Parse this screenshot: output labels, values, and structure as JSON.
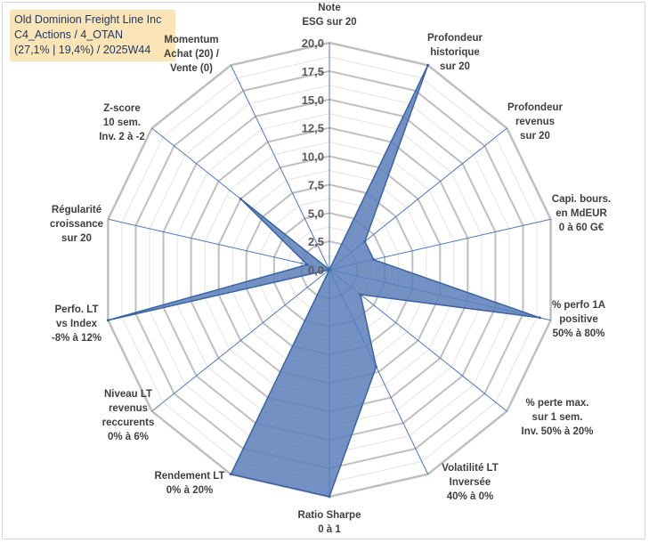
{
  "chart_data": {
    "type": "radar",
    "title": [
      "Old Dominion Freight Line Inc",
      "C4_Actions / 4_OTAN",
      "(27,1% | 19,4%) / 2025W44"
    ],
    "rlim": [
      0,
      20
    ],
    "ticks": [
      "0,0",
      "2,5",
      "5,0",
      "7,5",
      "10,0",
      "12,5",
      "15,0",
      "17,5",
      "20,0"
    ],
    "axes": [
      {
        "label": [
          "Note",
          "ESG sur 20"
        ],
        "value": 0
      },
      {
        "label": [
          "Profondeur",
          "historique",
          "sur 20"
        ],
        "value": 20
      },
      {
        "label": [
          "Profondeur",
          "revenus",
          "sur 20"
        ],
        "value": 4
      },
      {
        "label": [
          "Capi. bours.",
          "en MdEUR",
          "0 à 60 G€"
        ],
        "value": 4
      },
      {
        "label": [
          "% perfo 1A",
          "positive",
          "50% à 80%"
        ],
        "value": 19
      },
      {
        "label": [
          "% perte max.",
          "sur 1 sem.",
          "Inv. 50% à 20%"
        ],
        "value": 3.5
      },
      {
        "label": [
          "Volatilité LT",
          "Inversée",
          "40% à 0%"
        ],
        "value": 9.5
      },
      {
        "label": [
          "Ratio Sharpe",
          "0 à 1"
        ],
        "value": 20
      },
      {
        "label": [
          "Rendement LT",
          "0% à 20%"
        ],
        "value": 20
      },
      {
        "label": [
          "Niveau LT",
          "revenus",
          "reccurents",
          "0% à 6%"
        ],
        "value": 0
      },
      {
        "label": [
          "Perfo. LT",
          "vs Index",
          "-8% à 12%"
        ],
        "value": 20
      },
      {
        "label": [
          "Régularité",
          "croissance",
          "sur 20"
        ],
        "value": 2
      },
      {
        "label": [
          "Z-score",
          "10 sem.",
          "Inv. 2 à -2"
        ],
        "value": 10
      },
      {
        "label": [
          "Momentum",
          "Achat (20) /",
          "Vente (0)"
        ],
        "value": 0
      }
    ],
    "colors": {
      "fill": "#5b7fb8",
      "stroke": "#3a64a4",
      "grid": "#c0c0c0",
      "spoke": "#4a78c2"
    }
  }
}
